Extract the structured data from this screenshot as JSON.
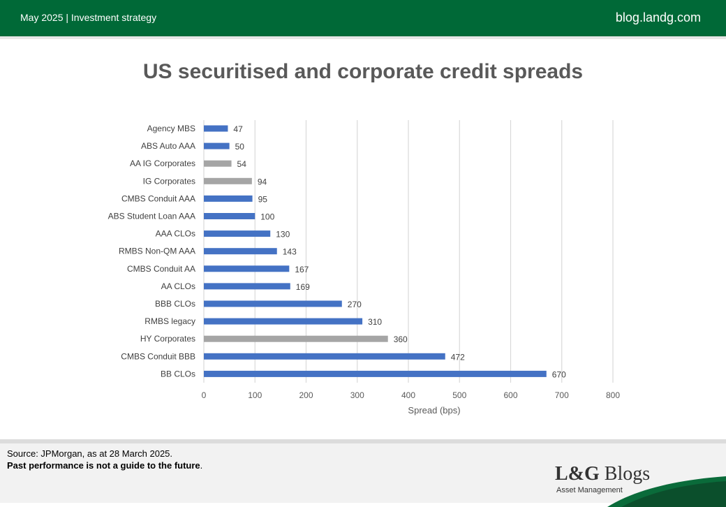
{
  "header": {
    "left_text": "May 2025 | Investment strategy",
    "right_text": "blog.landg.com"
  },
  "footer": {
    "source": "Source: JPMorgan, as at 28 March 2025.",
    "disclaimer_bold": "Past performance is not a guide to the future",
    "disclaimer_end": "."
  },
  "logo": {
    "brand_bold": "L&G",
    "brand_rest": " Blogs",
    "sub": "Asset Management"
  },
  "colors": {
    "header_green": "#006937",
    "securitised_bar": "#4472C4",
    "corporate_bar": "#A5A5A5"
  },
  "chart_data": {
    "type": "bar",
    "orientation": "horizontal",
    "title": "US securitised and corporate credit spreads",
    "xlabel": "Spread (bps)",
    "ylabel": "",
    "xlim": [
      0,
      800
    ],
    "x_ticks": [
      0,
      100,
      200,
      300,
      400,
      500,
      600,
      700,
      800
    ],
    "grid": "vertical",
    "data_labels": true,
    "categories": [
      "Agency MBS",
      "ABS Auto AAA",
      "AA IG Corporates",
      "IG Corporates",
      "CMBS Conduit AAA",
      "ABS Student Loan AAA",
      "AAA CLOs",
      "RMBS Non-QM AAA",
      "CMBS Conduit AA",
      "AA CLOs",
      "BBB CLOs",
      "RMBS legacy",
      "HY Corporates",
      "CMBS Conduit BBB",
      "BB CLOs"
    ],
    "values": [
      47,
      50,
      54,
      94,
      95,
      100,
      130,
      143,
      167,
      169,
      270,
      310,
      360,
      472,
      670
    ],
    "bar_colors": [
      "#4472C4",
      "#4472C4",
      "#A5A5A5",
      "#A5A5A5",
      "#4472C4",
      "#4472C4",
      "#4472C4",
      "#4472C4",
      "#4472C4",
      "#4472C4",
      "#4472C4",
      "#4472C4",
      "#A5A5A5",
      "#4472C4",
      "#4472C4"
    ]
  }
}
